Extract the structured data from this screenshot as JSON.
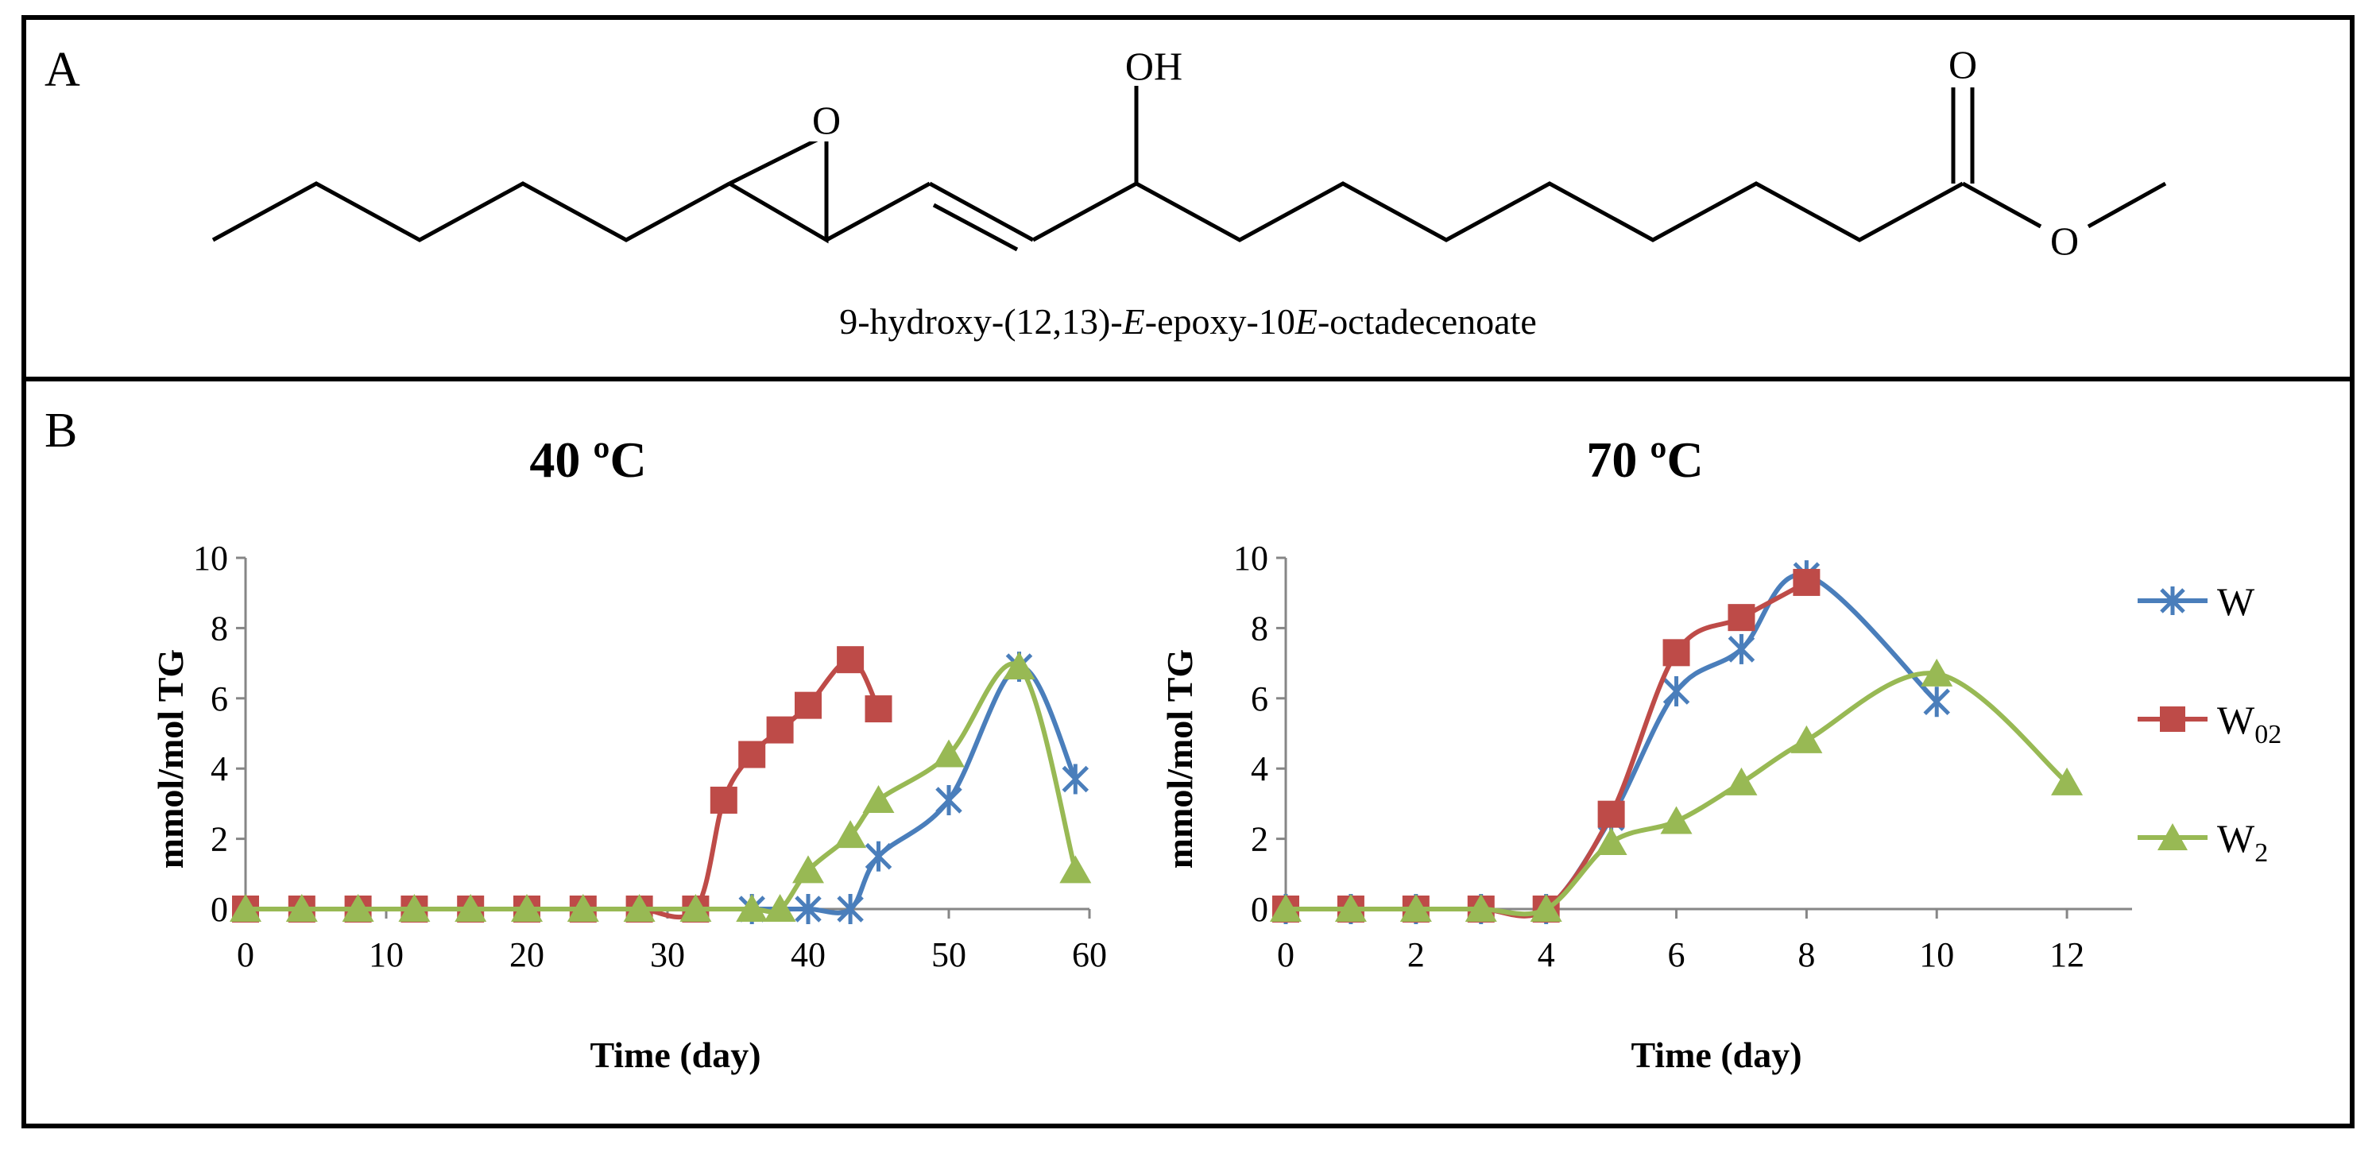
{
  "panel_a": {
    "letter": "A",
    "oh_label": "OH",
    "epoxy_o_label": "O",
    "carbonyl_o_label": "O",
    "ester_o_label": "O",
    "compound_name": {
      "prefix": "9-hydroxy-(12,13)-",
      "italic1": "E",
      "middle": "-epoxy-10",
      "italic2": "E",
      "suffix": "-octadecenoate"
    }
  },
  "panel_b": {
    "letter": "B"
  },
  "legend": {
    "items": [
      {
        "main": "W",
        "sub": ""
      },
      {
        "main": "W",
        "sub": "02"
      },
      {
        "main": "W",
        "sub": "2"
      }
    ]
  },
  "colors": {
    "W": "#4a7ebb",
    "W02": "#be4b48",
    "W2": "#98b954",
    "axis": "#868686"
  },
  "chart_data": [
    {
      "type": "line",
      "title": "40 ºC",
      "xlabel": "Time (day)",
      "ylabel": "mmol/mol TG",
      "xlim": [
        0,
        60
      ],
      "ylim": [
        0,
        10
      ],
      "xticks": [
        0,
        10,
        20,
        30,
        40,
        50,
        60
      ],
      "yticks": [
        0,
        2,
        4,
        6,
        8,
        10
      ],
      "series": [
        {
          "name": "W",
          "marker": "asterisk",
          "x": [
            36,
            40,
            43,
            45,
            50,
            55,
            59
          ],
          "y": [
            0,
            0,
            0,
            1.5,
            3.1,
            6.9,
            3.7
          ]
        },
        {
          "name": "W02",
          "marker": "square",
          "x": [
            0,
            4,
            8,
            12,
            16,
            20,
            24,
            28,
            32,
            34,
            36,
            38,
            40,
            43,
            45
          ],
          "y": [
            0,
            0,
            0,
            0,
            0,
            0,
            0,
            0,
            0,
            3.1,
            4.4,
            5.1,
            5.8,
            7.1,
            5.7
          ]
        },
        {
          "name": "W2",
          "marker": "triangle",
          "x": [
            0,
            4,
            8,
            12,
            16,
            20,
            24,
            28,
            32,
            36,
            38,
            40,
            43,
            45,
            50,
            55,
            59
          ],
          "y": [
            0,
            0,
            0,
            0,
            0,
            0,
            0,
            0,
            0,
            0,
            0,
            1.1,
            2.1,
            3.1,
            4.4,
            6.9,
            1.1
          ]
        }
      ]
    },
    {
      "type": "line",
      "title": "70 ºC",
      "xlabel": "Time (day)",
      "ylabel": "mmol/mol TG",
      "xlim": [
        0,
        13
      ],
      "ylim": [
        0,
        10
      ],
      "xticks": [
        0,
        2,
        4,
        6,
        8,
        10,
        12
      ],
      "yticks": [
        0,
        2,
        4,
        6,
        8,
        10
      ],
      "series": [
        {
          "name": "W",
          "marker": "asterisk",
          "x": [
            0,
            1,
            2,
            3,
            4,
            5,
            6,
            7,
            8,
            10
          ],
          "y": [
            0,
            0,
            0,
            0,
            0,
            2.6,
            6.2,
            7.4,
            9.5,
            5.9
          ]
        },
        {
          "name": "W02",
          "marker": "square",
          "x": [
            0,
            1,
            2,
            3,
            4,
            5,
            6,
            7,
            8
          ],
          "y": [
            0,
            0,
            0,
            0,
            0,
            2.7,
            7.3,
            8.3,
            9.3
          ]
        },
        {
          "name": "W2",
          "marker": "triangle",
          "x": [
            0,
            1,
            2,
            3,
            4,
            5,
            6,
            7,
            8,
            10,
            12
          ],
          "y": [
            0,
            0,
            0,
            0,
            0,
            1.9,
            2.5,
            3.6,
            4.8,
            6.7,
            3.6
          ]
        }
      ]
    }
  ]
}
